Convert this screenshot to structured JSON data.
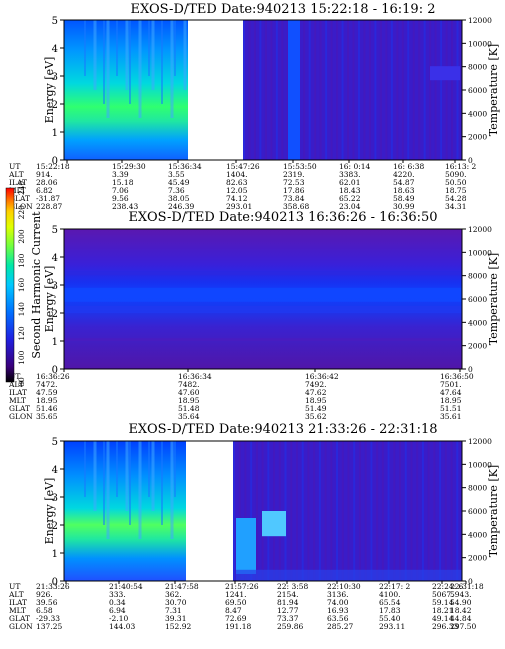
{
  "chart_data": [
    {
      "type": "heatmap",
      "title": "EXOS-D/TED   Date:940213  15:22:18  -  16:19: 2",
      "ylabel": "Energy [eV]",
      "ylabel_right": "Temperature [K]",
      "ylim": [
        0,
        5
      ],
      "yticks": [
        "0",
        "1",
        "2",
        "3",
        "4",
        "5"
      ],
      "ylim_right": [
        0,
        12000
      ],
      "yticks_right": [
        "0",
        "2000",
        "4000",
        "6000",
        "8000",
        "10000",
        "12000"
      ],
      "data_gap": true,
      "rows": [
        {
          "label": "UT",
          "values": [
            "15:22:18",
            "15:29:30",
            "15:36:34",
            "15:47:26",
            "15:53:50",
            "16: 0:14",
            "16: 6:38",
            "16:13: 2"
          ]
        },
        {
          "label": "ALT",
          "values": [
            "914.",
            "3.39",
            "3.55",
            "1404.",
            "2319.",
            "3383.",
            "4220.",
            "5090."
          ]
        },
        {
          "label": "ILAT",
          "values": [
            "28.06",
            "15.18",
            "45.49",
            "82.63",
            "72.53",
            "62.01",
            "54.87",
            "50.50"
          ]
        },
        {
          "label": "MLT",
          "values": [
            "6.82",
            "7.06",
            "7.36",
            "12.05",
            "17.86",
            "18.43",
            "18.63",
            "18.75"
          ]
        },
        {
          "label": "GLAT",
          "values": [
            "-31.87",
            "9.56",
            "38.05",
            "74.12",
            "73.84",
            "65.22",
            "58.49",
            "54.28"
          ]
        },
        {
          "label": "GLON",
          "values": [
            "228.87",
            "238.43",
            "246.39",
            "293.01",
            "358.68",
            "23.04",
            "30.99",
            "34.31"
          ]
        }
      ]
    },
    {
      "type": "heatmap",
      "title": "EXOS-D/TED   Date:940213  16:36:26  -  16:36:50",
      "ylabel": "Energy [eV]",
      "ylabel_right": "Temperature [K]",
      "ylim": [
        0,
        5
      ],
      "yticks": [
        "0",
        "1",
        "2",
        "3",
        "4",
        "5"
      ],
      "ylim_right": [
        0,
        12000
      ],
      "yticks_right": [
        "0",
        "2000",
        "4000",
        "6000",
        "8000",
        "10000",
        "12000"
      ],
      "data_gap": false,
      "rows": [
        {
          "label": "UT",
          "values": [
            "16:36:26",
            "16:36:34",
            "16:36:42",
            "16:36:50"
          ]
        },
        {
          "label": "ALT",
          "values": [
            "7472.",
            "7482.",
            "7492.",
            "7501."
          ]
        },
        {
          "label": "ILAT",
          "values": [
            "47.59",
            "47.60",
            "47.62",
            "47.64"
          ]
        },
        {
          "label": "MLT",
          "values": [
            "18.95",
            "18.95",
            "18.95",
            "18.95"
          ]
        },
        {
          "label": "GLAT",
          "values": [
            "51.46",
            "51.48",
            "51.49",
            "51.51"
          ]
        },
        {
          "label": "GLON",
          "values": [
            "35.65",
            "35.64",
            "35.62",
            "35.61"
          ]
        }
      ]
    },
    {
      "type": "heatmap",
      "title": "EXOS-D/TED   Date:940213  21:33:26  -  22:31:18",
      "ylabel": "Energy [eV]",
      "ylabel_right": "Temperature [K]",
      "ylim": [
        0,
        5
      ],
      "yticks": [
        "0",
        "1",
        "2",
        "3",
        "4",
        "5"
      ],
      "ylim_right": [
        0,
        12000
      ],
      "yticks_right": [
        "0",
        "2000",
        "4000",
        "6000",
        "8000",
        "10000",
        "12000"
      ],
      "data_gap": true,
      "rows": [
        {
          "label": "UT",
          "values": [
            "21:33:26",
            "21:40:54",
            "21:47:58",
            "21:57:26",
            "22: 3:58",
            "22:10:30",
            "22:17: 2",
            "22:24: 6",
            "22:31:18"
          ]
        },
        {
          "label": "ALT",
          "values": [
            "926.",
            "333.",
            "362.",
            "1241.",
            "2154.",
            "3136.",
            "4100.",
            "5067.",
            "5943."
          ]
        },
        {
          "label": "ILAT",
          "values": [
            "39.56",
            "0.34",
            "30.70",
            "69.50",
            "81.94",
            "74.00",
            "65.54",
            "59.14",
            "54.90"
          ]
        },
        {
          "label": "MLT",
          "values": [
            "6.58",
            "6.94",
            "7.31",
            "8.47",
            "12.77",
            "16.93",
            "17.83",
            "18.21",
            "18.42"
          ]
        },
        {
          "label": "GLAT",
          "values": [
            "-29.33",
            "-2.10",
            "39.31",
            "72.69",
            "73.37",
            "63.56",
            "55.40",
            "49.14",
            "44.84"
          ]
        },
        {
          "label": "GLON",
          "values": [
            "137.25",
            "144.03",
            "152.92",
            "191.18",
            "259.86",
            "285.27",
            "293.11",
            "296.33",
            "297.50"
          ]
        }
      ]
    }
  ],
  "colorbar": {
    "label": "Second Harmonic Current",
    "ticks": [
      "80",
      "100",
      "120",
      "140",
      "160",
      "180",
      "200",
      "220",
      "240"
    ],
    "colors": [
      "#000000",
      "#3a007a",
      "#1a1ad8",
      "#0060ff",
      "#00c0ff",
      "#00e0a0",
      "#60ff40",
      "#c0ff00",
      "#ffe000",
      "#ff8000",
      "#ff0000"
    ]
  }
}
